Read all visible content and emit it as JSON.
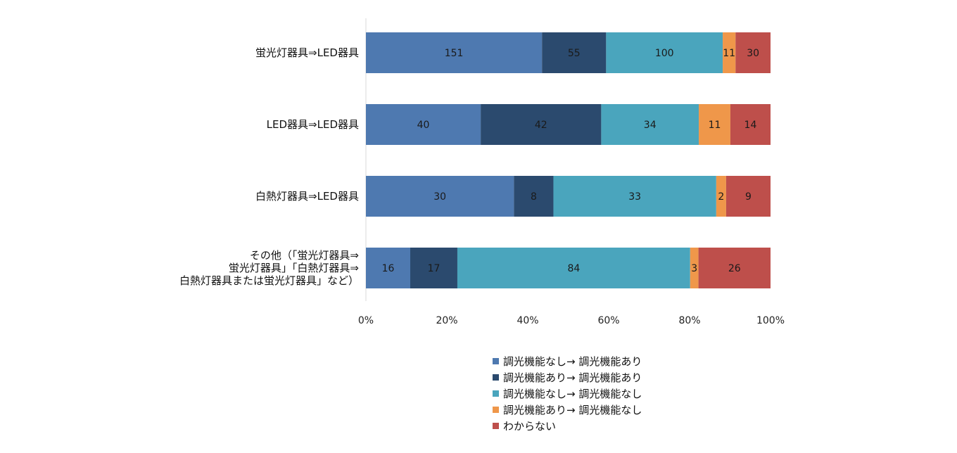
{
  "chart_data": {
    "type": "bar",
    "orientation": "horizontal",
    "stacked": "percent",
    "categories": [
      [
        "蛍光灯器具⇒LED器具"
      ],
      [
        "LED器具⇒LED器具"
      ],
      [
        "白熱灯器具⇒LED器具"
      ],
      [
        "その他（「蛍光灯器具⇒",
        "蛍光灯器具」「白熱灯器具⇒",
        "白熱灯器具または蛍光灯器具」など）"
      ]
    ],
    "series": [
      {
        "name": "調光機能なし→ 調光機能あり",
        "color": "#4e79b0",
        "values": [
          151,
          40,
          30,
          16
        ]
      },
      {
        "name": "調光機能あり→ 調光機能あり",
        "color": "#2b4a6e",
        "values": [
          55,
          42,
          8,
          17
        ]
      },
      {
        "name": "調光機能なし→ 調光機能なし",
        "color": "#4aa5bd",
        "values": [
          100,
          34,
          33,
          84
        ]
      },
      {
        "name": "調光機能あり→ 調光機能なし",
        "color": "#ef974a",
        "values": [
          11,
          11,
          2,
          3
        ]
      },
      {
        "name": "わからない",
        "color": "#be4f4b",
        "values": [
          30,
          14,
          9,
          26
        ]
      }
    ],
    "xlim": [
      0,
      100
    ],
    "xticks": [
      "0%",
      "20%",
      "40%",
      "60%",
      "80%",
      "100%"
    ],
    "grid": false,
    "legend_position": "bottom"
  }
}
